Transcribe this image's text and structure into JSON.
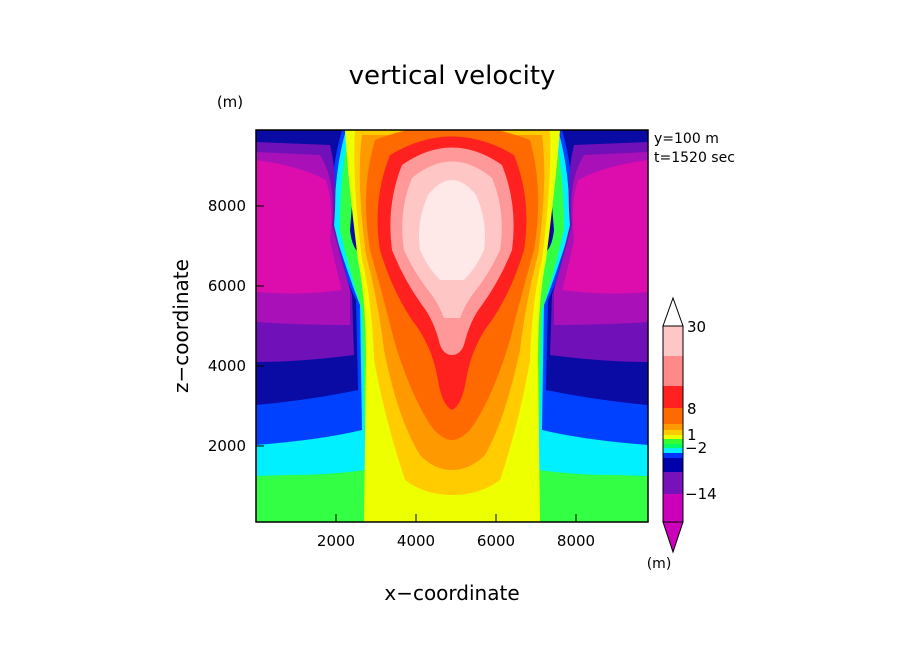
{
  "chart_data": {
    "type": "heatmap",
    "title": "vertical velocity",
    "xlabel": "x−coordinate",
    "ylabel": "z−coordinate",
    "x_unit": "(m)",
    "z_unit": "(m)",
    "annotations": [
      "y=100 m",
      "t=1520 sec"
    ],
    "xlim": [
      0,
      9800
    ],
    "ylim": [
      0,
      9800
    ],
    "x_ticks": [
      2000,
      4000,
      6000,
      8000
    ],
    "y_ticks": [
      2000,
      4000,
      6000,
      8000
    ],
    "x_tick_labels": [
      "2000",
      "4000",
      "6000",
      "8000"
    ],
    "y_tick_labels": [
      "2000",
      "4000",
      "6000",
      "8000"
    ],
    "colorbar": {
      "unit": "(m)",
      "labels": [
        {
          "value": 30,
          "text": "30"
        },
        {
          "value": 8,
          "text": "8"
        },
        {
          "value": 1,
          "text": "1"
        },
        {
          "value": -2,
          "text": "−2"
        },
        {
          "value": -14,
          "text": "−14"
        }
      ],
      "colors": [
        "#cc00bb",
        "#dd11aa",
        "#aa11bb",
        "#7711bb",
        "#0000aa",
        "#0033ff",
        "#00eeff",
        "#00ff66",
        "#33ff33",
        "#eeff00",
        "#ffcc00",
        "#ff9900",
        "#ff6600",
        "#ff2222",
        "#ff8888",
        "#ffcccc",
        "#ffffff"
      ]
    },
    "contour_colors": {
      "neg_strong": "#dd0cad",
      "neg_4": "#aa10b8",
      "neg_3": "#7010b8",
      "neg_2": "#0a0aa5",
      "neg_1": "#0040ff",
      "neg_0": "#00f0ff",
      "zero": "#33ff44",
      "pos_1": "#eeff00",
      "pos_2": "#ffcc00",
      "pos_3": "#ff9900",
      "pos_4": "#ff6a00",
      "pos_5": "#ff2020",
      "pos_6": "#ff9999",
      "pos_7": "#ffc6c6",
      "pos_8": "#ffe8e8"
    }
  }
}
